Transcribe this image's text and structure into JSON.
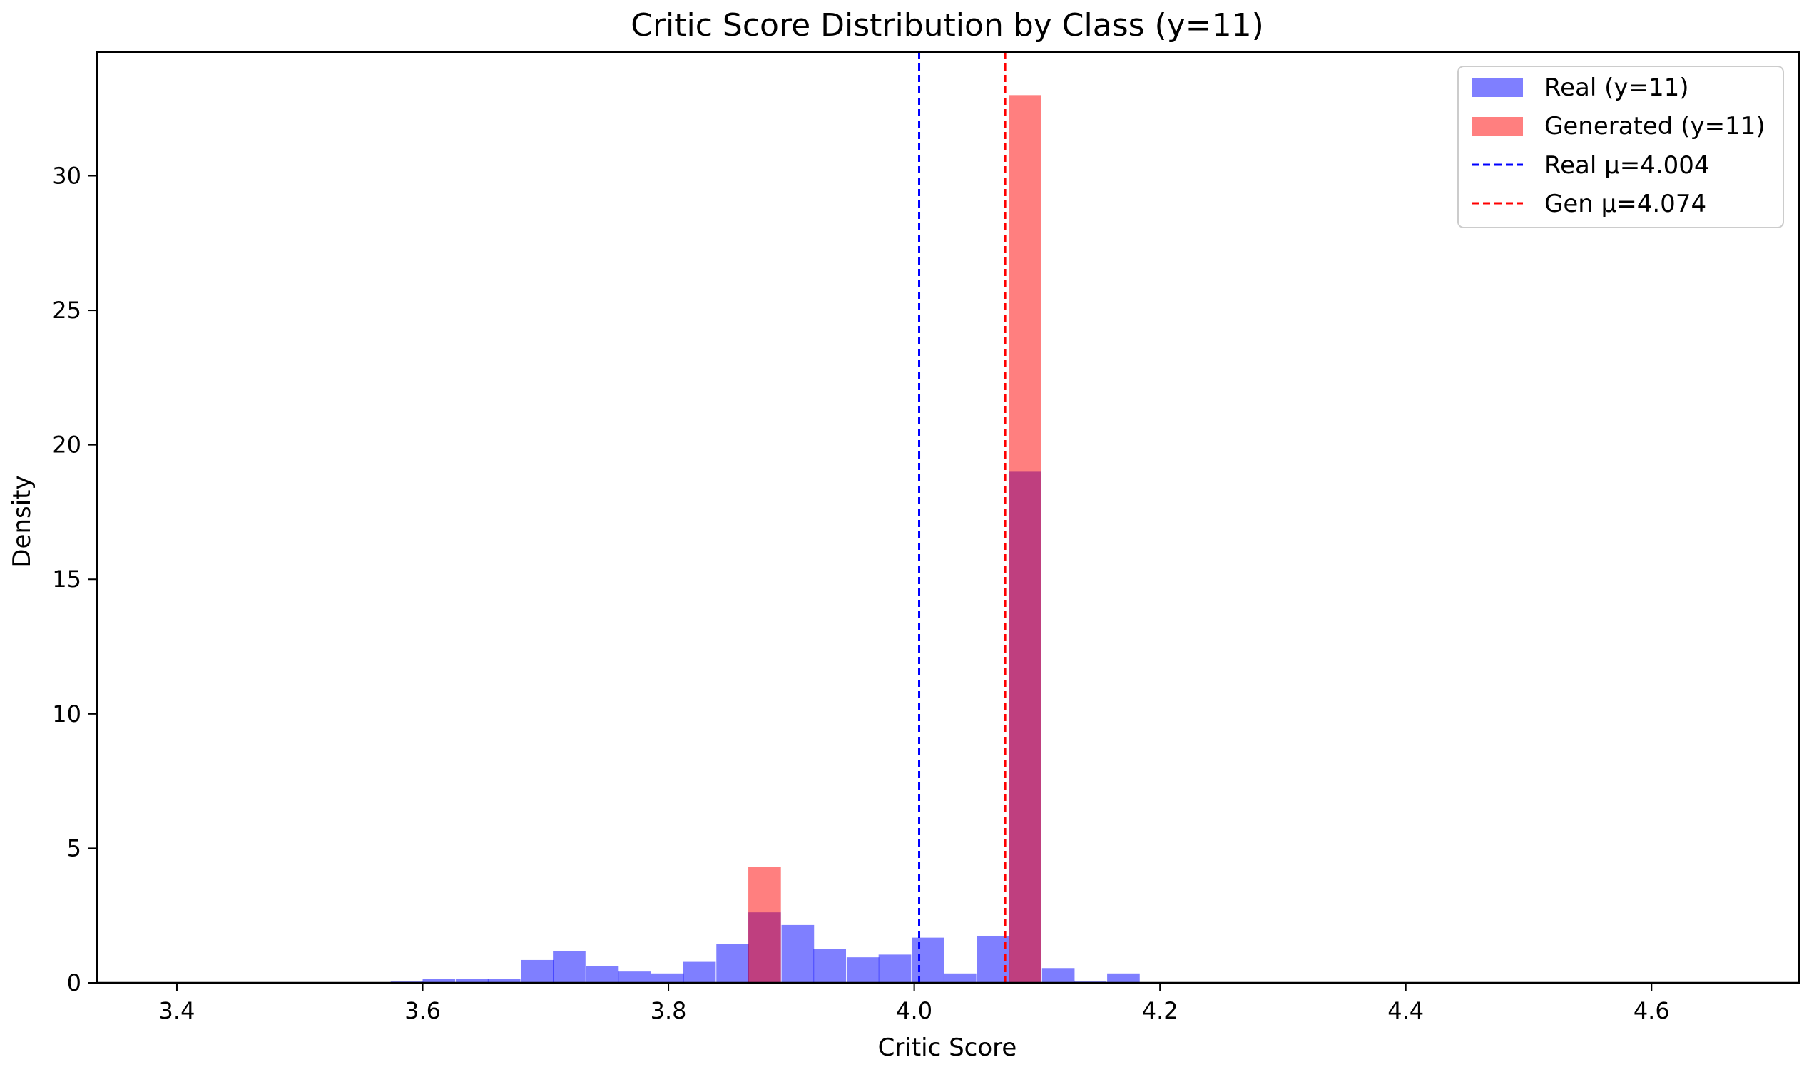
{
  "chart_data": {
    "type": "histogram",
    "title": "Critic Score Distribution by Class (y=11)",
    "xlabel": "Critic Score",
    "ylabel": "Density",
    "xlim": [
      3.335,
      4.72
    ],
    "ylim": [
      0,
      34.6
    ],
    "xticks": [
      {
        "value": 3.4,
        "label": "3.4"
      },
      {
        "value": 3.6,
        "label": "3.6"
      },
      {
        "value": 3.8,
        "label": "3.8"
      },
      {
        "value": 4.0,
        "label": "4.0"
      },
      {
        "value": 4.2,
        "label": "4.2"
      },
      {
        "value": 4.4,
        "label": "4.4"
      },
      {
        "value": 4.6,
        "label": "4.6"
      }
    ],
    "yticks": [
      {
        "value": 0,
        "label": "0"
      },
      {
        "value": 5,
        "label": "5"
      },
      {
        "value": 10,
        "label": "10"
      },
      {
        "value": 15,
        "label": "15"
      },
      {
        "value": 20,
        "label": "20"
      },
      {
        "value": 25,
        "label": "25"
      },
      {
        "value": 30,
        "label": "30"
      }
    ],
    "grid": false,
    "legend_position": "top-right",
    "series": [
      {
        "name": "Real (y=11)",
        "kind": "bars",
        "color": "#0000ff",
        "opacity": 0.5,
        "bin_width": 0.0265,
        "bins": [
          {
            "x0": 3.574,
            "height": 0.05
          },
          {
            "x0": 3.6,
            "height": 0.15
          },
          {
            "x0": 3.627,
            "height": 0.15
          },
          {
            "x0": 3.653,
            "height": 0.15
          },
          {
            "x0": 3.68,
            "height": 0.85
          },
          {
            "x0": 3.706,
            "height": 1.18
          },
          {
            "x0": 3.733,
            "height": 0.62
          },
          {
            "x0": 3.759,
            "height": 0.42
          },
          {
            "x0": 3.786,
            "height": 0.35
          },
          {
            "x0": 3.812,
            "height": 0.78
          },
          {
            "x0": 3.839,
            "height": 1.45
          },
          {
            "x0": 3.865,
            "height": 2.62
          },
          {
            "x0": 3.892,
            "height": 2.15
          },
          {
            "x0": 3.918,
            "height": 1.25
          },
          {
            "x0": 3.945,
            "height": 0.95
          },
          {
            "x0": 3.971,
            "height": 1.05
          },
          {
            "x0": 3.998,
            "height": 1.68
          },
          {
            "x0": 4.024,
            "height": 0.35
          },
          {
            "x0": 4.051,
            "height": 1.75
          },
          {
            "x0": 4.077,
            "height": 19.0
          },
          {
            "x0": 4.104,
            "height": 0.55
          },
          {
            "x0": 4.13,
            "height": 0.05
          },
          {
            "x0": 4.157,
            "height": 0.35
          }
        ]
      },
      {
        "name": "Generated (y=11)",
        "kind": "bars",
        "color": "#ff0000",
        "opacity": 0.5,
        "bin_width": 0.0265,
        "bins": [
          {
            "x0": 3.865,
            "height": 4.3
          },
          {
            "x0": 4.077,
            "height": 33.0
          }
        ]
      },
      {
        "name": "Real μ=4.004",
        "kind": "vline",
        "color": "#0000ff",
        "x": 4.004
      },
      {
        "name": "Gen μ=4.074",
        "kind": "vline",
        "color": "#ff0000",
        "x": 4.074
      }
    ]
  }
}
